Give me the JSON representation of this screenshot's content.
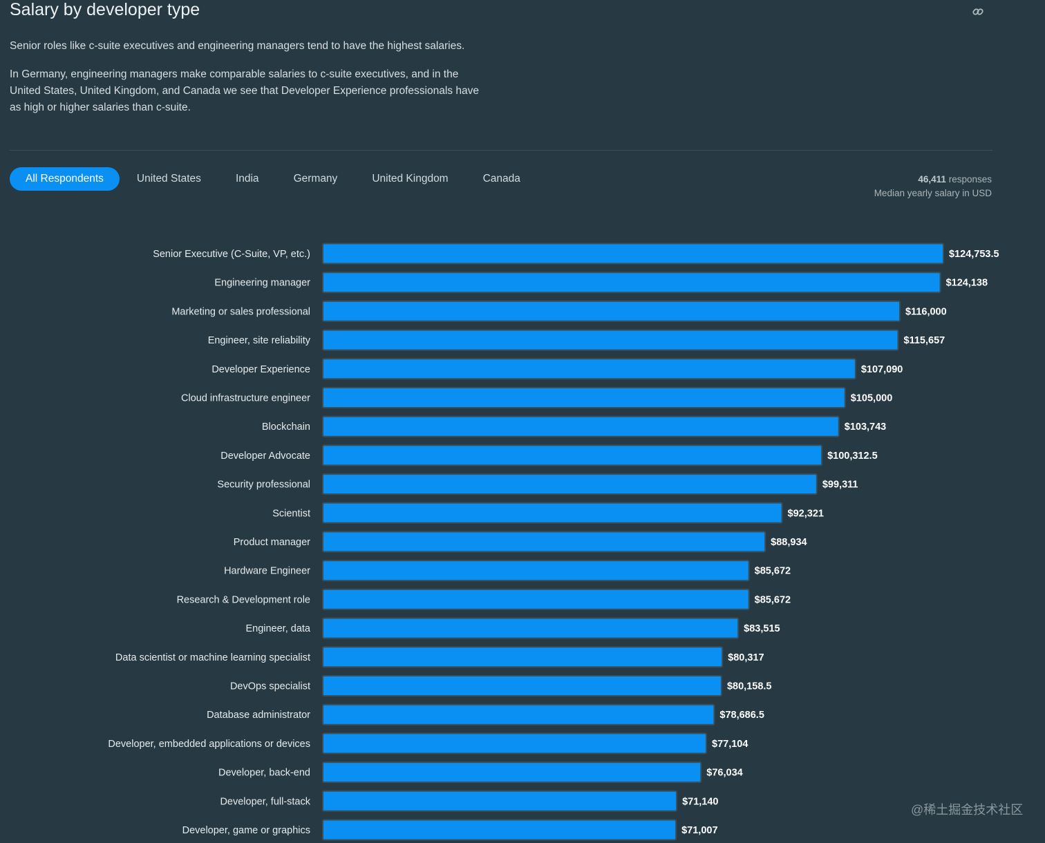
{
  "header": {
    "title": "Salary by developer type",
    "link_icon": "link-icon",
    "paragraph_1": "Senior roles like c-suite executives and engineering managers tend to have the highest salaries.",
    "paragraph_2": "In Germany, engineering managers make comparable salaries to c-suite executives, and in the United States, United Kingdom, and Canada we see that Developer Experience professionals have as high or higher salaries than c-suite."
  },
  "tabs": [
    {
      "label": "All Respondents",
      "active": true
    },
    {
      "label": "United States",
      "active": false
    },
    {
      "label": "India",
      "active": false
    },
    {
      "label": "Germany",
      "active": false
    },
    {
      "label": "United Kingdom",
      "active": false
    },
    {
      "label": "Canada",
      "active": false
    }
  ],
  "meta": {
    "responses_count": "46,411",
    "responses_label": "responses",
    "subtitle": "Median yearly salary in USD"
  },
  "colors": {
    "background": "#273a43",
    "bar_fill": "#0a8ff2",
    "bar_stroke": "#3a4f58",
    "active_tab": "#0a8ff2"
  },
  "chart_data": {
    "type": "bar",
    "orientation": "horizontal",
    "categories": [
      "Senior Executive (C-Suite, VP, etc.)",
      "Engineering manager",
      "Marketing or sales professional",
      "Engineer, site reliability",
      "Developer Experience",
      "Cloud infrastructure engineer",
      "Blockchain",
      "Developer Advocate",
      "Security professional",
      "Scientist",
      "Product manager",
      "Hardware Engineer",
      "Research & Development role",
      "Engineer, data",
      "Data scientist or machine learning specialist",
      "DevOps specialist",
      "Database administrator",
      "Developer, embedded applications or devices",
      "Developer, back-end",
      "Developer, full-stack",
      "Developer, game or graphics"
    ],
    "values": [
      124753.5,
      124138,
      116000,
      115657,
      107090,
      105000,
      103743,
      100312.5,
      99311,
      92321,
      88934,
      85672,
      85672,
      83515,
      80317,
      80158.5,
      78686.5,
      77104,
      76034,
      71140,
      71007
    ],
    "value_labels": [
      "$124,753.5",
      "$124,138",
      "$116,000",
      "$115,657",
      "$107,090",
      "$105,000",
      "$103,743",
      "$100,312.5",
      "$99,311",
      "$92,321",
      "$88,934",
      "$85,672",
      "$85,672",
      "$83,515",
      "$80,317",
      "$80,158.5",
      "$78,686.5",
      "$77,104",
      "$76,034",
      "$71,140",
      "$71,007"
    ],
    "xlim": [
      0,
      124753.5
    ],
    "grid": false,
    "legend": "none"
  },
  "watermark": "@稀土掘金技术社区"
}
